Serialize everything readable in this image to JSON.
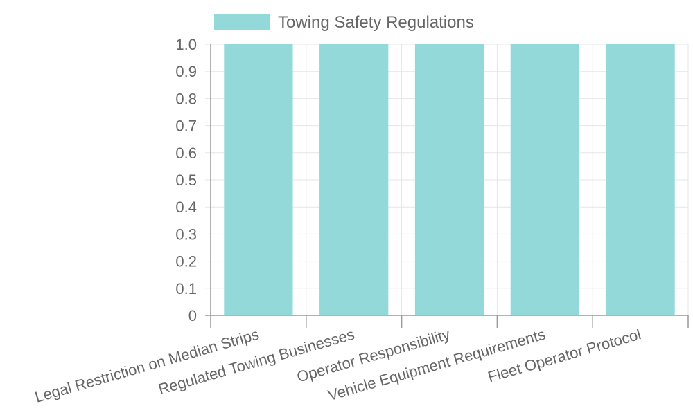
{
  "chart_data": {
    "type": "bar",
    "categories": [
      "Legal Restriction on Median Strips",
      "Regulated Towing Businesses",
      "Operator Responsibility",
      "Vehicle Equipment Requirements",
      "Fleet Operator Protocol"
    ],
    "series": [
      {
        "name": "Towing Safety Regulations",
        "values": [
          1,
          1,
          1,
          1,
          1
        ]
      }
    ],
    "yticks": [
      "0",
      "0.1",
      "0.2",
      "0.3",
      "0.4",
      "0.5",
      "0.6",
      "0.7",
      "0.8",
      "0.9",
      "1.0"
    ],
    "ylim": [
      0,
      1
    ],
    "grid": true,
    "legend": "top-center",
    "colors": {
      "bar_fill": "#93d9d9",
      "bar_stroke": "#7cc9c9",
      "grid": "#e6e6e6",
      "axis": "#999999",
      "text": "#666666"
    }
  }
}
